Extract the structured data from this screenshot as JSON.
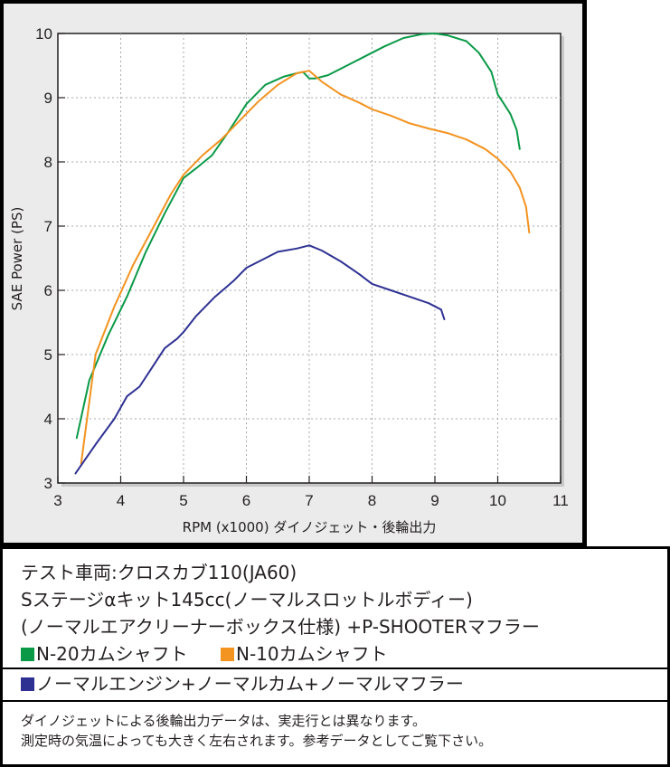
{
  "chart_data": {
    "type": "line",
    "title": "",
    "xlabel": "RPM (x1000) ダイノジェット・後輪出力",
    "ylabel": "SAE Power (PS)",
    "xlim": [
      3,
      11
    ],
    "ylim": [
      3,
      10
    ],
    "xticks": [
      "3",
      "4",
      "5",
      "6",
      "7",
      "8",
      "9",
      "10",
      "11"
    ],
    "yticks": [
      "3",
      "4",
      "5",
      "6",
      "7",
      "8",
      "9",
      "10"
    ],
    "grid": true,
    "series": [
      {
        "name": "N-20カムシャフト",
        "color": "#0a9a47",
        "x": [
          3.3,
          3.5,
          3.8,
          4.1,
          4.4,
          4.7,
          5.0,
          5.2,
          5.45,
          5.7,
          6.0,
          6.3,
          6.6,
          6.8,
          6.9,
          7.0,
          7.1,
          7.3,
          7.6,
          7.9,
          8.2,
          8.5,
          8.8,
          9.0,
          9.2,
          9.5,
          9.7,
          9.9,
          10.0,
          10.1,
          10.2,
          10.3,
          10.35
        ],
        "y": [
          3.7,
          4.6,
          5.3,
          5.9,
          6.6,
          7.2,
          7.75,
          7.9,
          8.1,
          8.45,
          8.9,
          9.2,
          9.33,
          9.38,
          9.4,
          9.3,
          9.3,
          9.35,
          9.5,
          9.65,
          9.8,
          9.93,
          9.99,
          10.0,
          9.97,
          9.88,
          9.7,
          9.4,
          9.05,
          8.9,
          8.75,
          8.5,
          8.2
        ]
      },
      {
        "name": "N-10カムシャフト",
        "color": "#f39320",
        "x": [
          3.37,
          3.6,
          3.9,
          4.2,
          4.5,
          4.8,
          5.0,
          5.3,
          5.6,
          5.9,
          6.2,
          6.5,
          6.8,
          7.0,
          7.2,
          7.5,
          7.8,
          8.0,
          8.3,
          8.6,
          8.9,
          9.2,
          9.5,
          9.8,
          10.0,
          10.2,
          10.35,
          10.45,
          10.5
        ],
        "y": [
          3.3,
          5.0,
          5.75,
          6.4,
          6.95,
          7.5,
          7.8,
          8.1,
          8.35,
          8.65,
          8.95,
          9.2,
          9.38,
          9.42,
          9.25,
          9.05,
          8.92,
          8.82,
          8.72,
          8.6,
          8.52,
          8.45,
          8.35,
          8.2,
          8.05,
          7.85,
          7.6,
          7.3,
          6.9
        ]
      },
      {
        "name": "ノーマルエンジン+ノーマルカム+ノーマルマフラー",
        "color": "#2e3192",
        "x": [
          3.28,
          3.6,
          3.9,
          4.1,
          4.3,
          4.5,
          4.7,
          4.9,
          5.0,
          5.2,
          5.5,
          5.8,
          6.0,
          6.3,
          6.5,
          6.8,
          7.0,
          7.2,
          7.5,
          7.8,
          8.0,
          8.3,
          8.6,
          8.9,
          9.1,
          9.15
        ],
        "y": [
          3.15,
          3.6,
          4.0,
          4.35,
          4.5,
          4.8,
          5.1,
          5.25,
          5.35,
          5.6,
          5.9,
          6.15,
          6.35,
          6.5,
          6.6,
          6.65,
          6.7,
          6.62,
          6.45,
          6.25,
          6.1,
          6.0,
          5.9,
          5.8,
          5.7,
          5.55
        ]
      }
    ]
  },
  "info": {
    "line1": "テスト車両:クロスカブ110(JA60)",
    "line2": "Sステージαキット145cc(ノーマルスロットルボディー)",
    "line3": "(ノーマルエアクリーナーボックス仕様) +P-SHOOTERマフラー",
    "legend_green": "N-20カムシャフト",
    "legend_orange": "N-10カムシャフト",
    "legend_blue": "ノーマルエンジン+ノーマルカム+ノーマルマフラー",
    "note1": "ダイノジェットによる後輪出力データは、実走行とは異なります。",
    "note2": "測定時の気温によっても大きく左右されます。参考データとしてご覧下さい。"
  },
  "colors": {
    "green": "#0a9a47",
    "orange": "#f39320",
    "blue": "#2e3192",
    "chart_background": "#ebebeb",
    "plot_background": "#ffffff"
  }
}
